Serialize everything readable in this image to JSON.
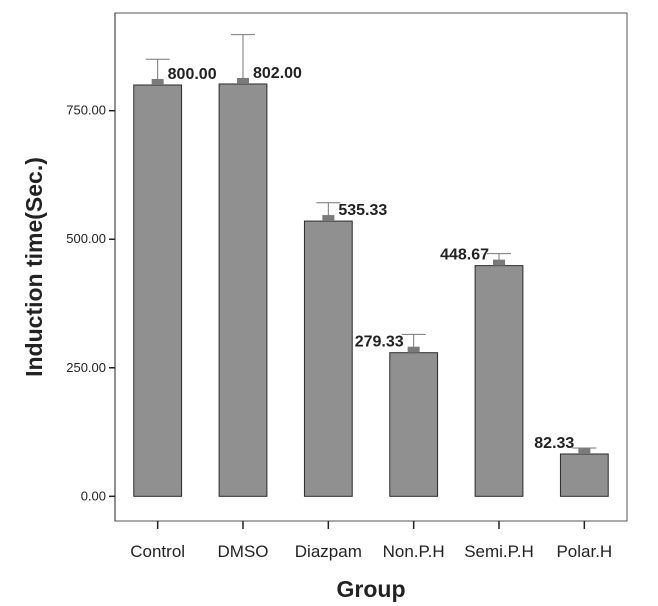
{
  "chart_data": {
    "type": "bar",
    "xlabel": "Group",
    "ylabel": "Induction time(Sec.)",
    "categories": [
      "Control",
      "DMSO",
      "Diazpam",
      "Non.P.H",
      "Semi.P.H",
      "Polar.H"
    ],
    "values": [
      800.0,
      802.0,
      535.33,
      279.33,
      448.67,
      82.33
    ],
    "value_labels": [
      "800.00",
      "802.00",
      "535.33",
      "279.33",
      "448.67",
      "82.33"
    ],
    "error_upper": [
      850,
      898,
      571,
      315,
      472,
      94
    ],
    "yticks": [
      0,
      250,
      500,
      750
    ],
    "ytick_labels": [
      "0.00",
      "250.00",
      "500.00",
      "750.00"
    ],
    "ylim": [
      -48,
      940
    ],
    "grid": false,
    "legend": "none",
    "colors": {
      "bar_fill": "#909090",
      "bar_stroke": "#2b2b2b",
      "error_bar": "#777777",
      "mean_marker": "#7a7a7a",
      "axis": "#222222",
      "frame": "#555555"
    }
  }
}
